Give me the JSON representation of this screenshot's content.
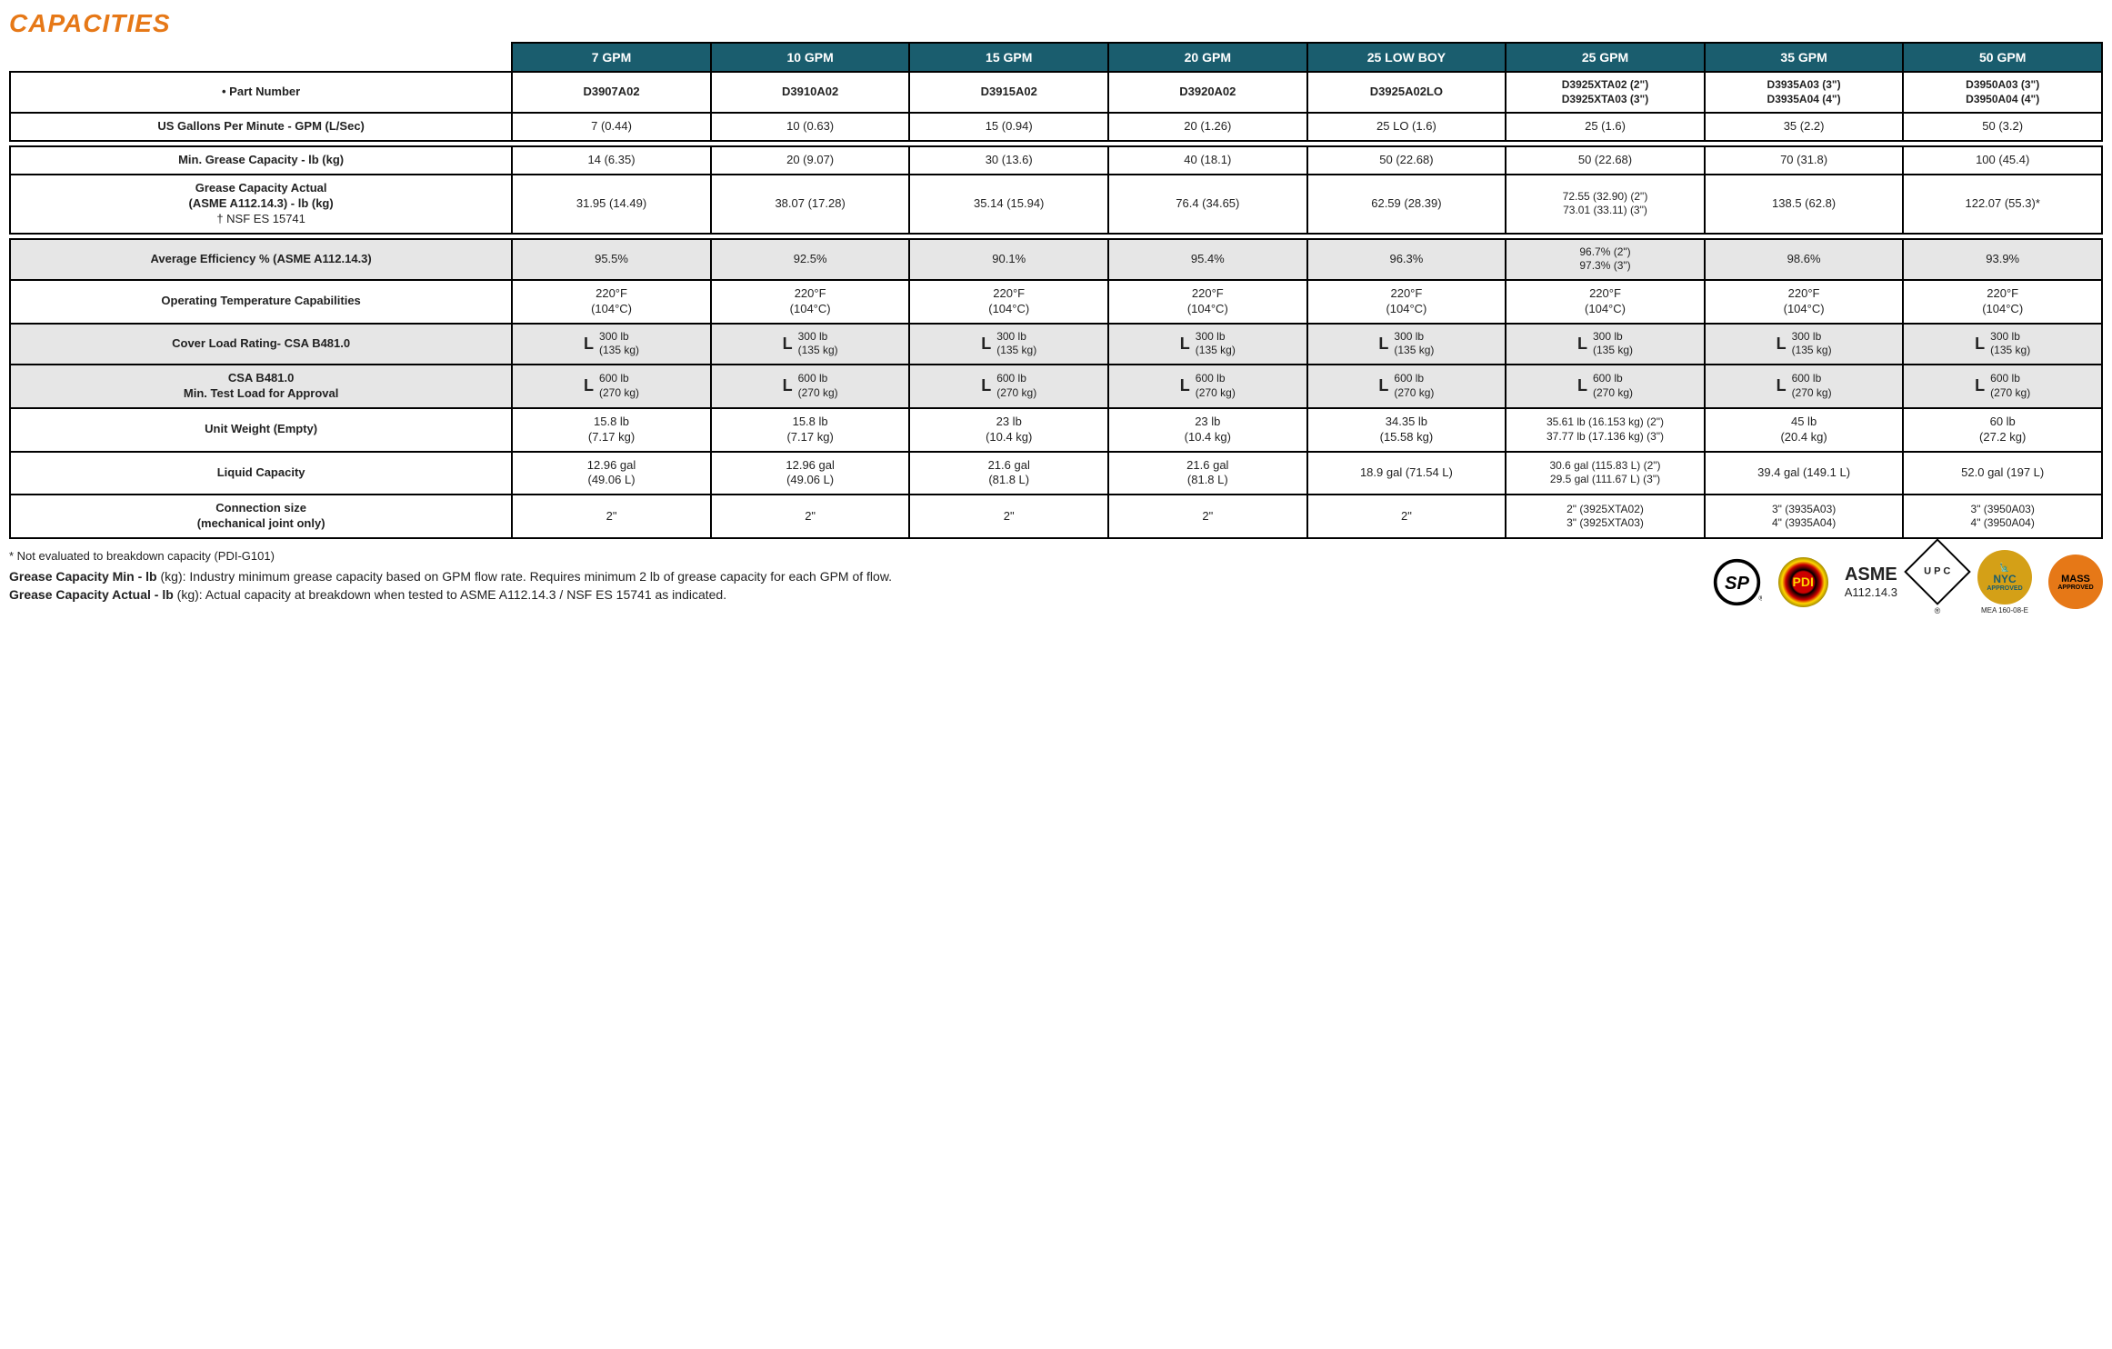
{
  "title": "CAPACITIES",
  "headers": [
    "7 GPM",
    "10 GPM",
    "15 GPM",
    "20 GPM",
    "25 LOW BOY",
    "25 GPM",
    "35 GPM",
    "50 GPM"
  ],
  "row_part_label": "• Part Number",
  "row_part": [
    "D3907A02",
    "D3910A02",
    "D3915A02",
    "D3920A02",
    "D3925A02LO",
    "D3925XTA02 (2\")\nD3925XTA03 (3\")",
    "D3935A03 (3\")\nD3935A04 (4\")",
    "D3950A03 (3\")\nD3950A04 (4\")"
  ],
  "row_gpm_label": "US Gallons Per Minute  - GPM (L/Sec)",
  "row_gpm": [
    "7  (0.44)",
    "10  (0.63)",
    "15  (0.94)",
    "20  (1.26)",
    "25 LO  (1.6)",
    "25  (1.6)",
    "35  (2.2)",
    "50  (3.2)"
  ],
  "row_min_label": "Min. Grease Capacity - lb (kg)",
  "row_min": [
    "14  (6.35)",
    "20  (9.07)",
    "30  (13.6)",
    "40  (18.1)",
    "50  (22.68)",
    "50  (22.68)",
    "70  (31.8)",
    "100  (45.4)"
  ],
  "row_actual_label1": "Grease Capacity Actual",
  "row_actual_label2": "(ASME A112.14.3) - lb (kg)",
  "row_actual_label3": "† NSF ES 15741",
  "row_actual": [
    "31.95 (14.49)",
    "38.07 (17.28)",
    "35.14 (15.94)",
    "76.4 (34.65)",
    "62.59 (28.39)",
    "72.55 (32.90) (2\")\n73.01 (33.11) (3\")",
    "138.5 (62.8)",
    "122.07 (55.3)*"
  ],
  "row_eff_label": "Average Efficiency % (ASME A112.14.3)",
  "row_eff": [
    "95.5%",
    "92.5%",
    "90.1%",
    "95.4%",
    "96.3%",
    "96.7% (2\")\n97.3% (3\")",
    "98.6%",
    "93.9%"
  ],
  "row_temp_label": "Operating Temperature Capabilities",
  "row_temp": [
    "220°F\n(104°C)",
    "220°F\n(104°C)",
    "220°F\n(104°C)",
    "220°F\n(104°C)",
    "220°F\n(104°C)",
    "220°F\n(104°C)",
    "220°F\n(104°C)",
    "220°F\n(104°C)"
  ],
  "row_cover_label": "Cover Load Rating- CSA B481.0",
  "row_cover": [
    "300 lb\n(135 kg)",
    "300 lb\n(135 kg)",
    "300 lb\n(135 kg)",
    "300 lb\n(135 kg)",
    "300 lb\n(135 kg)",
    "300 lb\n(135 kg)",
    "300 lb\n(135 kg)",
    "300 lb\n(135 kg)"
  ],
  "row_test_label1": "CSA B481.0",
  "row_test_label2": "Min. Test Load for Approval",
  "row_test": [
    "600 lb\n(270 kg)",
    "600 lb\n(270 kg)",
    "600 lb\n(270 kg)",
    "600 lb\n(270 kg)",
    "600 lb\n(270 kg)",
    "600 lb\n(270 kg)",
    "600 lb\n(270 kg)",
    "600 lb\n(270 kg)"
  ],
  "row_weight_label": "Unit Weight (Empty)",
  "row_weight": [
    "15.8 lb\n(7.17 kg)",
    "15.8 lb\n(7.17 kg)",
    "23 lb\n(10.4 kg)",
    "23 lb\n(10.4 kg)",
    "34.35 lb\n(15.58 kg)",
    "35.61 lb (16.153 kg) (2\")\n37.77 lb (17.136 kg) (3\")",
    "45 lb\n(20.4 kg)",
    "60 lb\n(27.2 kg)"
  ],
  "row_liquid_label": "Liquid Capacity",
  "row_liquid": [
    "12.96 gal\n(49.06 L)",
    "12.96 gal\n(49.06 L)",
    "21.6 gal\n(81.8 L)",
    "21.6 gal\n(81.8 L)",
    "18.9 gal (71.54 L)",
    "30.6 gal (115.83 L) (2\")\n29.5 gal (111.67 L) (3\")",
    "39.4 gal (149.1 L)",
    "52.0 gal (197 L)"
  ],
  "row_conn_label1": "Connection size",
  "row_conn_label2": "(mechanical joint only)",
  "row_conn": [
    "2\"",
    "2\"",
    "2\"",
    "2\"",
    "2\"",
    "2\" (3925XTA02)\n3\" (3925XTA03)",
    "3\" (3935A03)\n4\" (3935A04)",
    "3\" (3950A03)\n4\" (3950A04)"
  ],
  "footnote": "* Not evaluated to breakdown capacity (PDI-G101)",
  "def1_bold": "Grease Capacity Min - lb",
  "def1_rest": " (kg): Industry minimum grease capacity based on GPM flow rate. Requires minimum 2 lb of grease capacity for each GPM of flow.",
  "def2_bold": "Grease Capacity Actual - lb",
  "def2_rest": " (kg): Actual capacity at breakdown when tested to ASME A112.14.3 / NSF ES 15741 as indicated.",
  "asme_top": "ASME",
  "asme_bot": "A112.14.3",
  "upc": "U P C",
  "nyc": "NYC",
  "nyc_sub": "APPROVED",
  "nyc_mea": "MEA 160-08-E",
  "mass": "MASS",
  "mass_sub": "APPROVED",
  "pdi": "PDI"
}
